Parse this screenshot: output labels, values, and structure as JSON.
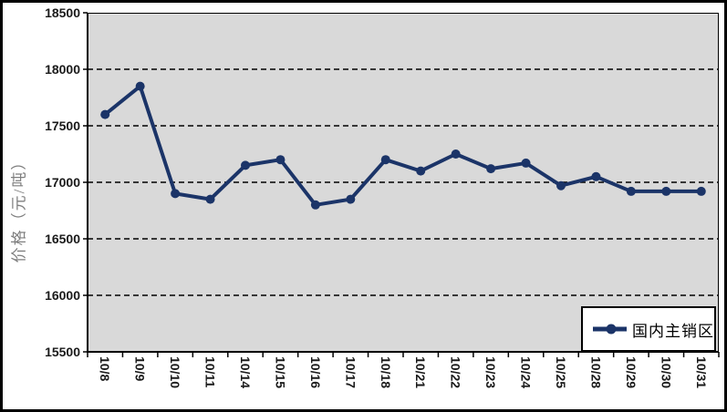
{
  "chart_data": {
    "type": "line",
    "title": "",
    "ylabel": "价格（元/吨）",
    "xlabel": "",
    "categories": [
      "10/8",
      "10/9",
      "10/10",
      "10/11",
      "10/14",
      "10/15",
      "10/16",
      "10/17",
      "10/18",
      "10/21",
      "10/22",
      "10/23",
      "10/24",
      "10/25",
      "10/28",
      "10/29",
      "10/30",
      "10/31"
    ],
    "series": [
      {
        "name": "国内主销区",
        "values": [
          17600,
          17850,
          16900,
          16850,
          17150,
          17200,
          16800,
          16850,
          17200,
          17100,
          17250,
          17120,
          17170,
          16970,
          17050,
          16920,
          16920,
          16920
        ],
        "color": "#1b3468",
        "marker": "circle"
      }
    ],
    "ylim": [
      15500,
      18500
    ],
    "yticks": [
      15500,
      16000,
      16500,
      17000,
      17500,
      18000,
      18500
    ],
    "grid": "horizontal-dashed",
    "grid_color": "#000000",
    "axis_color": "#000000",
    "plot_background": "#d9d9d9",
    "legend_position": "bottom-right"
  },
  "legend": {
    "label": "国内主销区"
  }
}
